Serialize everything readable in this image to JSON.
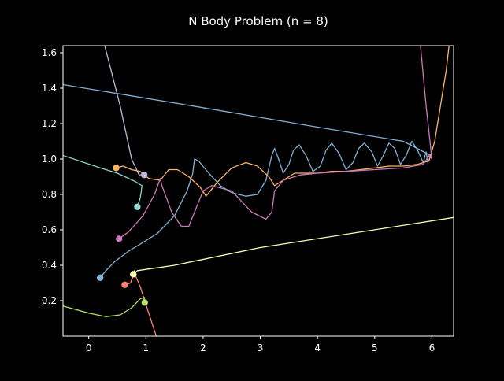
{
  "chart_data": {
    "type": "line",
    "title": "N Body Problem (n = 8)",
    "xlabel": "",
    "ylabel": "",
    "xlim": [
      -0.45,
      6.38
    ],
    "ylim": [
      0.0,
      1.64
    ],
    "xticks": [
      0,
      1,
      2,
      3,
      4,
      5,
      6
    ],
    "yticks": [
      0.2,
      0.4,
      0.6,
      0.8,
      1.0,
      1.2,
      1.4,
      1.6
    ],
    "xtick_labels": [
      "0",
      "1",
      "2",
      "3",
      "4",
      "5",
      "6"
    ],
    "ytick_labels": [
      "0.2",
      "0.4",
      "0.6",
      "0.8",
      "1.0",
      "1.2",
      "1.4",
      "1.6"
    ],
    "grid": false,
    "background": "#000000",
    "foreground": "#ffffff",
    "series": [
      {
        "color": "#8dd3c7",
        "points": [
          [
            -0.45,
            1.02
          ],
          [
            0.2,
            0.95
          ],
          [
            0.5,
            0.92
          ],
          [
            0.8,
            0.875
          ],
          [
            0.93,
            0.85
          ],
          [
            0.92,
            0.82
          ],
          [
            0.9,
            0.78
          ],
          [
            0.85,
            0.73
          ]
        ],
        "marker": [
          0.85,
          0.73
        ]
      },
      {
        "color": "#ffffb3",
        "points": [
          [
            6.38,
            0.67
          ],
          [
            3.0,
            0.5
          ],
          [
            1.5,
            0.4
          ],
          [
            0.85,
            0.37
          ],
          [
            0.82,
            0.36
          ],
          [
            0.8,
            0.37
          ],
          [
            0.78,
            0.35
          ]
        ],
        "marker": [
          0.78,
          0.35
        ]
      },
      {
        "color": "#bebada",
        "points": [
          [
            0.28,
            1.64
          ],
          [
            0.55,
            1.3
          ],
          [
            0.75,
            1.0
          ],
          [
            0.88,
            0.91
          ],
          [
            0.97,
            0.91
          ]
        ],
        "marker": [
          0.97,
          0.91
        ]
      },
      {
        "color": "#fb8072",
        "points": [
          [
            1.18,
            0.0
          ],
          [
            1.05,
            0.13
          ],
          [
            0.9,
            0.28
          ],
          [
            0.82,
            0.34
          ],
          [
            0.78,
            0.34
          ],
          [
            0.73,
            0.3
          ],
          [
            0.63,
            0.29
          ]
        ],
        "marker": [
          0.63,
          0.29
        ]
      },
      {
        "color": "#80b1d3",
        "points": [
          [
            0.2,
            0.33
          ],
          [
            0.3,
            0.37
          ],
          [
            0.45,
            0.42
          ],
          [
            0.7,
            0.48
          ],
          [
            0.95,
            0.53
          ],
          [
            1.2,
            0.58
          ],
          [
            1.5,
            0.68
          ],
          [
            1.72,
            0.82
          ],
          [
            1.82,
            0.92
          ],
          [
            1.85,
            1.0
          ],
          [
            1.92,
            0.99
          ],
          [
            2.1,
            0.92
          ],
          [
            2.3,
            0.85
          ],
          [
            2.5,
            0.81
          ],
          [
            2.75,
            0.79
          ],
          [
            2.95,
            0.8
          ],
          [
            3.1,
            0.88
          ],
          [
            3.2,
            1.02
          ],
          [
            3.25,
            1.06
          ],
          [
            3.32,
            1.0
          ],
          [
            3.4,
            0.92
          ],
          [
            3.5,
            0.97
          ],
          [
            3.58,
            1.05
          ],
          [
            3.68,
            1.08
          ],
          [
            3.8,
            1.02
          ],
          [
            3.92,
            0.93
          ],
          [
            4.05,
            0.96
          ],
          [
            4.15,
            1.05
          ],
          [
            4.25,
            1.09
          ],
          [
            4.38,
            1.03
          ],
          [
            4.5,
            0.94
          ],
          [
            4.62,
            0.98
          ],
          [
            4.72,
            1.06
          ],
          [
            4.82,
            1.09
          ],
          [
            4.95,
            1.04
          ],
          [
            5.05,
            0.96
          ],
          [
            5.15,
            1.02
          ],
          [
            5.25,
            1.09
          ],
          [
            5.35,
            1.06
          ],
          [
            5.45,
            0.97
          ],
          [
            5.55,
            1.02
          ],
          [
            5.65,
            1.1
          ],
          [
            5.75,
            1.05
          ],
          [
            5.85,
            0.98
          ],
          [
            5.9,
            1.04
          ],
          [
            5.93,
            0.98
          ],
          [
            5.98,
            1.02
          ],
          [
            5.5,
            1.1
          ],
          [
            4.0,
            1.18
          ],
          [
            2.0,
            1.29
          ],
          [
            0.5,
            1.37
          ],
          [
            -0.45,
            1.42
          ]
        ],
        "marker": [
          0.2,
          0.33
        ]
      },
      {
        "color": "#fdb462",
        "points": [
          [
            0.48,
            0.95
          ],
          [
            0.6,
            0.96
          ],
          [
            0.75,
            0.94
          ],
          [
            0.9,
            0.93
          ],
          [
            1.05,
            0.89
          ],
          [
            1.25,
            0.88
          ],
          [
            1.3,
            0.9
          ],
          [
            1.4,
            0.94
          ],
          [
            1.55,
            0.94
          ],
          [
            1.75,
            0.9
          ],
          [
            1.95,
            0.84
          ],
          [
            2.05,
            0.79
          ],
          [
            2.25,
            0.87
          ],
          [
            2.5,
            0.95
          ],
          [
            2.75,
            0.98
          ],
          [
            2.95,
            0.96
          ],
          [
            3.15,
            0.9
          ],
          [
            3.25,
            0.85
          ],
          [
            3.4,
            0.88
          ],
          [
            3.6,
            0.92
          ],
          [
            3.8,
            0.92
          ],
          [
            4.0,
            0.92
          ],
          [
            4.25,
            0.93
          ],
          [
            4.5,
            0.93
          ],
          [
            4.75,
            0.94
          ],
          [
            5.0,
            0.95
          ],
          [
            5.25,
            0.96
          ],
          [
            5.5,
            0.96
          ],
          [
            5.75,
            0.97
          ],
          [
            5.95,
            0.99
          ],
          [
            6.05,
            1.1
          ],
          [
            6.15,
            1.3
          ],
          [
            6.25,
            1.5
          ],
          [
            6.3,
            1.64
          ]
        ],
        "marker": [
          0.48,
          0.95
        ]
      },
      {
        "color": "#b3de69",
        "points": [
          [
            -0.45,
            0.17
          ],
          [
            0.0,
            0.13
          ],
          [
            0.3,
            0.11
          ],
          [
            0.55,
            0.12
          ],
          [
            0.75,
            0.16
          ],
          [
            0.9,
            0.21
          ],
          [
            0.97,
            0.22
          ],
          [
            0.98,
            0.19
          ]
        ],
        "marker": [
          0.98,
          0.19
        ]
      },
      {
        "color": "#cc79b8",
        "points": [
          [
            0.53,
            0.55
          ],
          [
            0.7,
            0.59
          ],
          [
            0.95,
            0.68
          ],
          [
            1.15,
            0.8
          ],
          [
            1.25,
            0.89
          ],
          [
            1.28,
            0.85
          ],
          [
            1.45,
            0.7
          ],
          [
            1.62,
            0.62
          ],
          [
            1.75,
            0.62
          ],
          [
            1.85,
            0.7
          ],
          [
            2.0,
            0.82
          ],
          [
            2.15,
            0.85
          ],
          [
            2.5,
            0.82
          ],
          [
            2.85,
            0.7
          ],
          [
            3.1,
            0.66
          ],
          [
            3.2,
            0.7
          ],
          [
            3.25,
            0.82
          ],
          [
            3.4,
            0.88
          ],
          [
            3.7,
            0.91
          ],
          [
            4.0,
            0.92
          ],
          [
            4.5,
            0.93
          ],
          [
            5.0,
            0.94
          ],
          [
            5.5,
            0.95
          ],
          [
            5.85,
            0.97
          ],
          [
            5.95,
            1.02
          ],
          [
            6.0,
            1.0
          ],
          [
            5.9,
            1.3
          ],
          [
            5.8,
            1.64
          ]
        ],
        "marker": [
          0.53,
          0.55
        ]
      }
    ]
  }
}
